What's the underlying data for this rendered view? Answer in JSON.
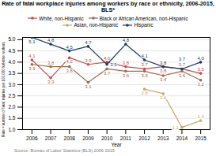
{
  "chart_data": {
    "type": "line",
    "title": "Rate of fatal workplace injuries among workers by race or ethnicity, 2006-2015,\nBLS*",
    "xlabel": "Year",
    "ylabel": "Rate = number of fatal  injuries per 100,000 full-time workers",
    "x": [
      2006,
      2007,
      2008,
      2009,
      2010,
      2011,
      2012,
      2013,
      2014,
      2015
    ],
    "series": [
      {
        "name": "White, non-Hispanic",
        "color": "#c0504d",
        "marker": "circle",
        "line_style": "solid",
        "values": [
          4.1,
          3.3,
          4.2,
          3.9,
          4.0,
          3.8,
          3.7,
          3.8,
          3.7,
          3.5
        ],
        "value_labels": [
          "4.1",
          "3.3",
          "4.2",
          "3.9",
          "4.0",
          "3.8",
          "3.7",
          "3.8",
          "3.7",
          "3.5"
        ]
      },
      {
        "name": "Black or African American, non-Hispanic",
        "color": "#9c6b4e",
        "marker": "circle",
        "line_style": "solid",
        "values": [
          3.9,
          3.8,
          3.8,
          3.1,
          3.7,
          3.6,
          3.6,
          3.4,
          3.6,
          3.2
        ],
        "value_labels": [
          "3.9",
          "3.8",
          "3.8",
          "3.1",
          "3.7",
          "3.6",
          "3.6",
          "3.4",
          "3.6",
          "3.2"
        ]
      },
      {
        "name": "Asian, non-Hispanic",
        "color": "#c8a96e",
        "marker": "circle",
        "line_style": "solid",
        "values": [
          null,
          null,
          null,
          null,
          null,
          null,
          2.8,
          2.6,
          1.1,
          1.4
        ],
        "value_labels": [
          null,
          null,
          null,
          null,
          null,
          null,
          "2.8",
          "2.6",
          "1.1",
          "1.4"
        ]
      },
      {
        "name": "Hispanic",
        "color": "#1f3864",
        "marker": "circle",
        "line_style": "solid",
        "values": [
          5.1,
          4.8,
          4.5,
          4.7,
          3.9,
          4.8,
          4.1,
          3.8,
          3.7,
          4.0
        ],
        "value_labels": [
          "5.1",
          "4.8",
          "4.5",
          "4.7",
          "3.9",
          "4.8",
          "4.1",
          "3.8",
          "3.7",
          "4.0"
        ]
      }
    ],
    "xlim": [
      2005.5,
      2015.5
    ],
    "xticks": [
      2006,
      2007,
      2008,
      2009,
      2010,
      2011,
      2012,
      2013,
      2014,
      2015
    ],
    "ylim": [
      1.0,
      5.1
    ],
    "yticks": [
      {
        "value": 1.0,
        "label": "1.0"
      },
      1.5,
      {
        "value": 2.0,
        "label": "2.0"
      },
      2.5,
      {
        "value": 3.0,
        "label": "3.0"
      },
      3.5,
      {
        "value": 4.0,
        "label": "4.0"
      },
      4.5,
      {
        "value": 5.0,
        "label": "5.0"
      }
    ],
    "grid": true,
    "legend": "top",
    "data_labels": true,
    "annotations": [
      "Source: Bureau of Labor Statistics (BLS) 2006-2015"
    ]
  }
}
